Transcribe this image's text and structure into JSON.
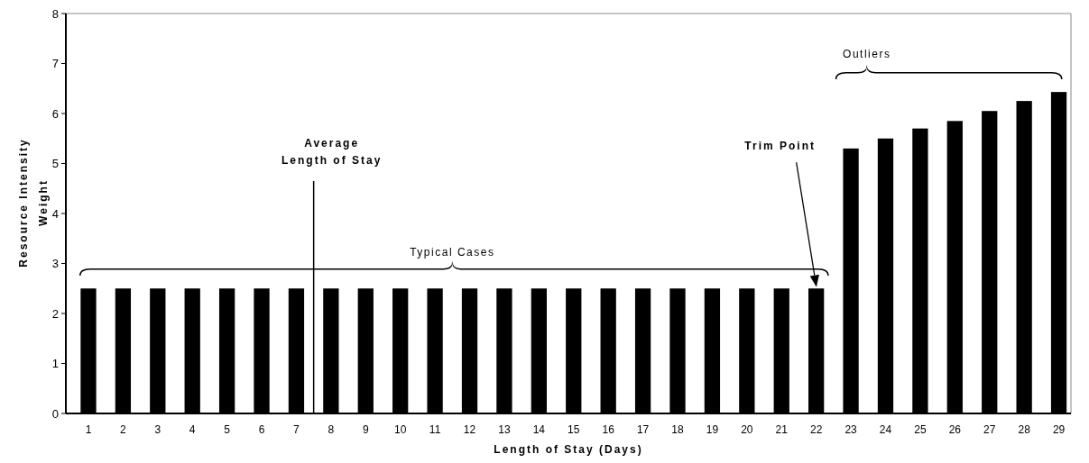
{
  "chart_data": {
    "type": "bar",
    "xlabel": "Length of Stay (Days)",
    "ylabel": "Resource Intensity Weight",
    "x": [
      1,
      2,
      3,
      4,
      5,
      6,
      7,
      8,
      9,
      10,
      11,
      12,
      13,
      14,
      15,
      16,
      17,
      18,
      19,
      20,
      21,
      22,
      23,
      24,
      25,
      26,
      27,
      28,
      29
    ],
    "values": [
      2.5,
      2.5,
      2.5,
      2.5,
      2.5,
      2.5,
      2.5,
      2.5,
      2.5,
      2.5,
      2.5,
      2.5,
      2.5,
      2.5,
      2.5,
      2.5,
      2.5,
      2.5,
      2.5,
      2.5,
      2.5,
      2.5,
      5.3,
      5.5,
      5.7,
      5.85,
      6.05,
      6.25,
      6.43
    ],
    "color": "#000000",
    "xlim": [
      0.35,
      29.35
    ],
    "xticks": [
      1,
      2,
      3,
      4,
      5,
      6,
      7,
      8,
      9,
      10,
      11,
      12,
      13,
      14,
      15,
      16,
      17,
      18,
      19,
      20,
      21,
      22,
      23,
      24,
      25,
      26,
      27,
      28,
      29
    ],
    "ylim": [
      0,
      8
    ],
    "yticks": [
      0,
      1,
      2,
      3,
      4,
      5,
      6,
      7,
      8
    ],
    "grid": false,
    "ref_lines": [
      {
        "axis": "x",
        "value": 7.5,
        "label": "Average Length of Stay",
        "color": "#000000"
      }
    ],
    "annotations": [
      "Typical Cases",
      "Outliers",
      {
        "text": "Trim Point",
        "x": 22,
        "y": 2.5
      }
    ]
  }
}
